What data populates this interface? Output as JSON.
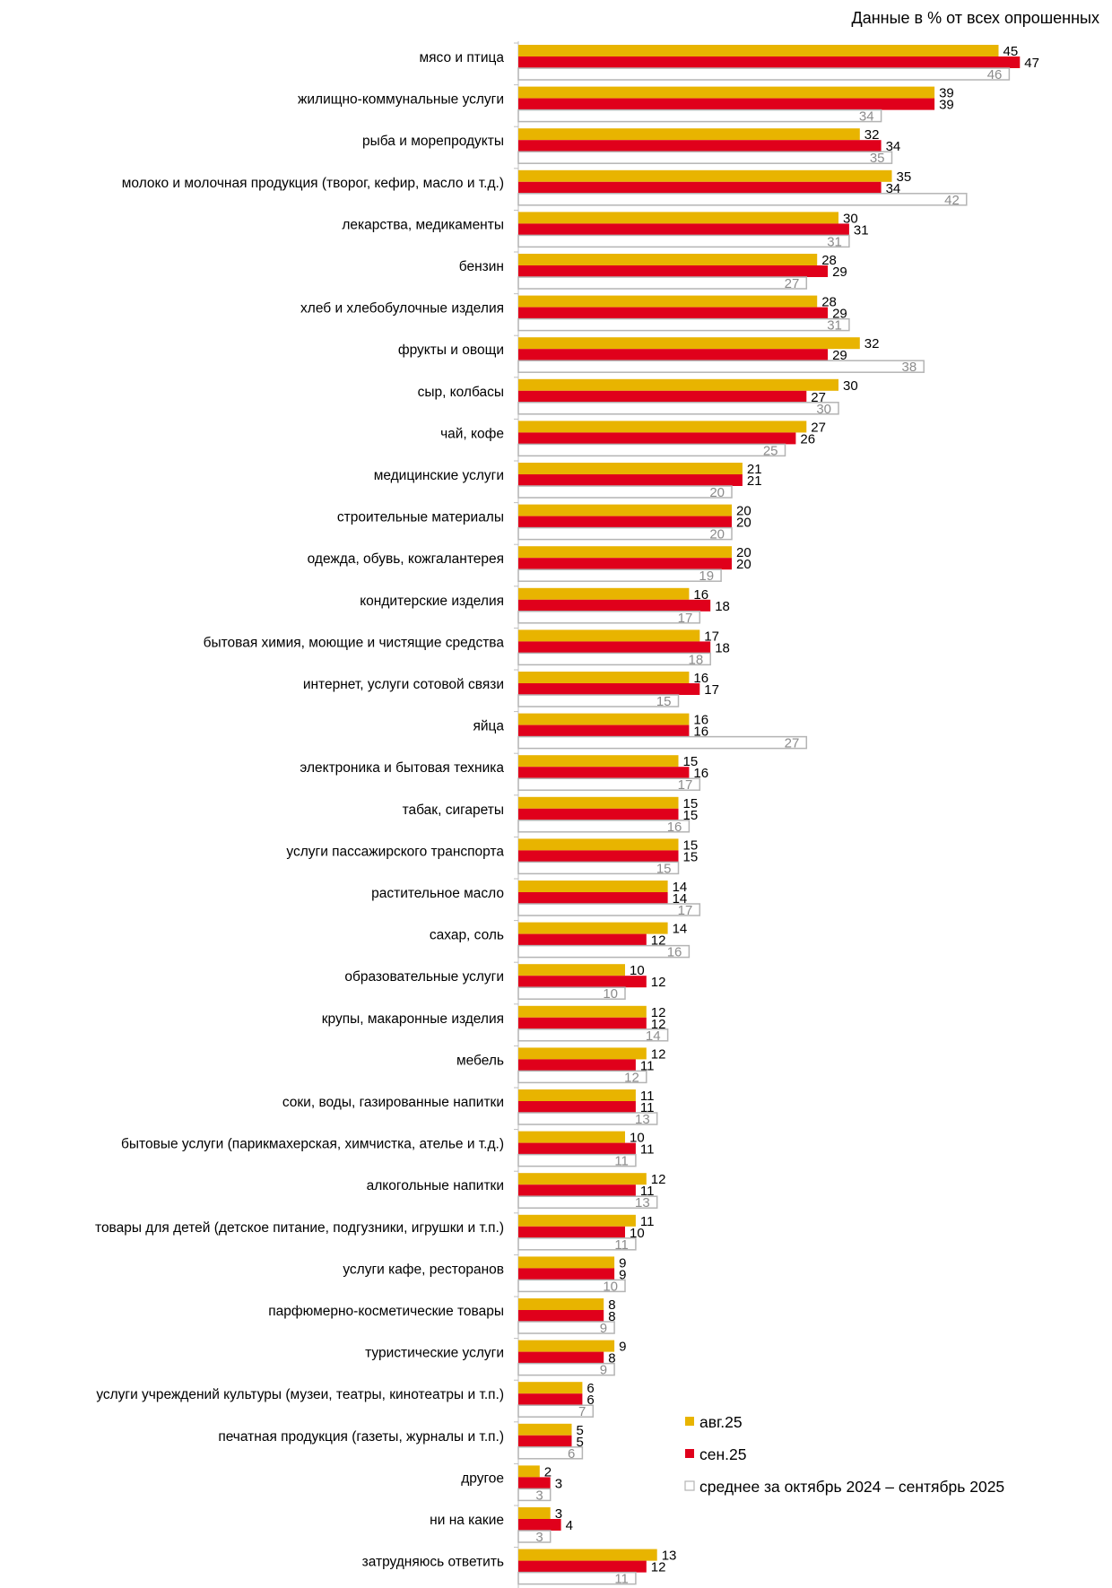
{
  "note": "Данные в % от всех опрошенных",
  "colors": {
    "aug": "#E8B400",
    "sep": "#E0001B",
    "avg_fill": "#FFFFFF",
    "avg_stroke": "#B4B4B4",
    "avg_label": "#8C8C8C",
    "axis": "#BFBFBF"
  },
  "chart_data": {
    "type": "bar",
    "orientation": "horizontal",
    "xlim": [
      0,
      50
    ],
    "grid": false,
    "legend_position": "bottom-right",
    "categories": [
      "мясо и птица",
      "жилищно-коммунальные услуги",
      "рыба и морепродукты",
      "молоко и молочная продукция (творог, кефир, масло и т.д.)",
      "лекарства, медикаменты",
      "бензин",
      "хлеб и хлебобулочные изделия",
      "фрукты и овощи",
      "сыр, колбасы",
      "чай, кофе",
      "медицинские услуги",
      "строительные материалы",
      "одежда, обувь, кожгалантерея",
      "кондитерские изделия",
      "бытовая химия, моющие и чистящие средства",
      "интернет, услуги сотовой связи",
      "яйца",
      "электроника и бытовая техника",
      "табак, сигареты",
      "услуги пассажирского транспорта",
      "растительное масло",
      "сахар, соль",
      "образовательные услуги",
      "крупы, макаронные изделия",
      "мебель",
      "соки, воды, газированные напитки",
      "бытовые услуги (парикмахерская, химчистка, ателье и т.д.)",
      "алкогольные напитки",
      "товары для детей (детское питание, подгузники, игрушки и т.п.)",
      "услуги кафе, ресторанов",
      "парфюмерно-косметические товары",
      "туристические услуги",
      "услуги учреждений культуры (музеи, театры, кинотеатры и т.п.)",
      "печатная продукция (газеты, журналы и т.п.)",
      "другое",
      "ни на какие",
      "затрудняюсь ответить"
    ],
    "series": [
      {
        "name": "авг.25",
        "values": [
          45,
          39,
          32,
          35,
          30,
          28,
          28,
          32,
          30,
          27,
          21,
          20,
          20,
          16,
          17,
          16,
          16,
          15,
          15,
          15,
          14,
          14,
          10,
          12,
          12,
          11,
          10,
          12,
          11,
          9,
          8,
          9,
          6,
          5,
          2,
          3,
          13
        ]
      },
      {
        "name": "сен.25",
        "values": [
          47,
          39,
          34,
          34,
          31,
          29,
          29,
          29,
          27,
          26,
          21,
          20,
          20,
          18,
          18,
          17,
          16,
          16,
          15,
          15,
          14,
          12,
          12,
          12,
          11,
          11,
          11,
          11,
          10,
          9,
          8,
          8,
          6,
          5,
          3,
          4,
          12
        ]
      },
      {
        "name": "среднее за октябрь 2024 – сентябрь 2025",
        "values": [
          46,
          34,
          35,
          42,
          31,
          27,
          31,
          38,
          30,
          25,
          20,
          20,
          19,
          17,
          18,
          15,
          27,
          17,
          16,
          15,
          17,
          16,
          10,
          14,
          12,
          13,
          11,
          13,
          11,
          10,
          9,
          9,
          7,
          6,
          3,
          3,
          11
        ]
      }
    ]
  }
}
